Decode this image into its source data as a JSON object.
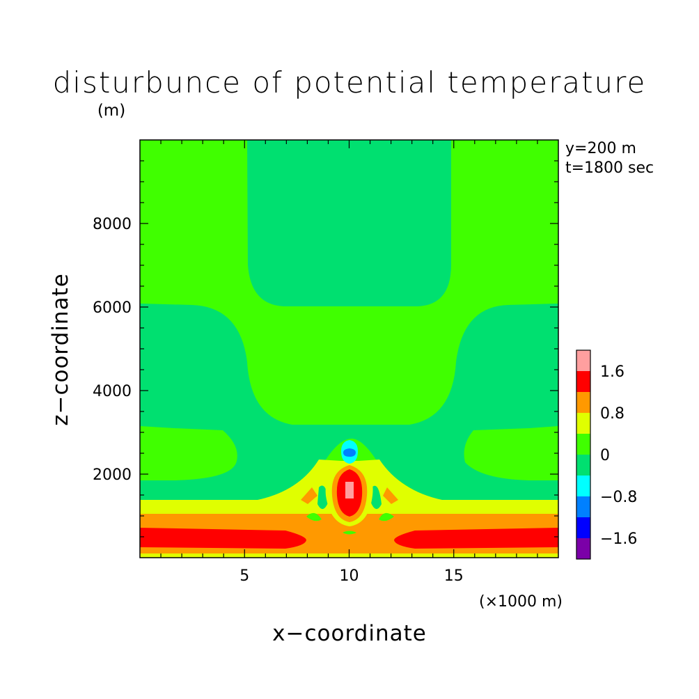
{
  "chart_data": {
    "type": "heatmap",
    "title": "disturbunce of potential temperature",
    "ylabel": "z−coordinate",
    "ylabel_unit": "(m)",
    "xlabel": "x−coordinate",
    "xlabel_unit": "(×1000 m)",
    "annotations": [
      "y=200 m",
      "t=1800 sec"
    ],
    "xlim": [
      0,
      20
    ],
    "ylim": [
      0,
      10000
    ],
    "x_ticks": [
      5,
      10,
      15
    ],
    "x_tick_labels": [
      "5",
      "10",
      "15"
    ],
    "y_ticks": [
      2000,
      4000,
      6000,
      8000
    ],
    "y_tick_labels": [
      "2000",
      "4000",
      "6000",
      "8000"
    ],
    "colorbar": {
      "levels": [
        -2.0,
        -1.6,
        -1.2,
        -0.8,
        -0.4,
        0,
        0.4,
        0.8,
        1.2,
        1.6,
        2.0
      ],
      "labels": [
        "1.6",
        "0.8",
        "0",
        "−0.8",
        "−1.6"
      ],
      "label_levels": [
        1.6,
        0.8,
        0,
        -0.8,
        -1.6
      ],
      "colors": [
        "#7b00a8",
        "#0000ff",
        "#0080ff",
        "#00ffff",
        "#00e070",
        "#40ff00",
        "#e0ff00",
        "#ff9900",
        "#ff0000",
        "#ff9f9f"
      ]
    },
    "grid": false,
    "legend": "colorbar right"
  }
}
